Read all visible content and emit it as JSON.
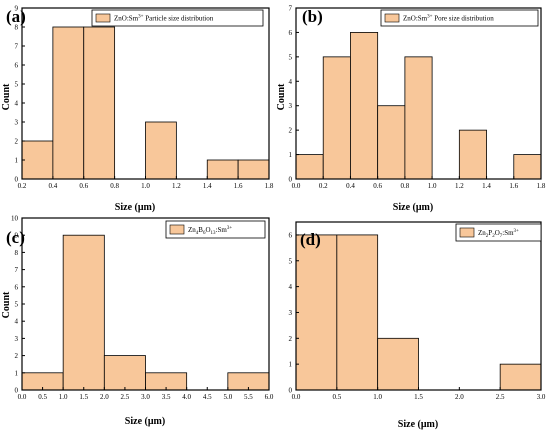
{
  "colors": {
    "bar_fill": "#F8C79A",
    "bar_stroke": "#000000",
    "axis": "#000000"
  },
  "chart_data": [
    {
      "type": "bar",
      "panel_label": "(a)",
      "legend": [
        "ZnO:Sm",
        "3+",
        " Particle size distribution"
      ],
      "xlabel": "Size (μm)",
      "ylabel": "Count",
      "xlim": [
        0.2,
        1.8
      ],
      "ylim": [
        0,
        9
      ],
      "xticks": [
        "0.2",
        "0.4",
        "0.6",
        "0.8",
        "1.0",
        "1.2",
        "1.4",
        "1.6",
        "1.8"
      ],
      "yticks": [
        "0",
        "1",
        "2",
        "3",
        "4",
        "5",
        "6",
        "7",
        "8",
        "9"
      ],
      "bins": [
        {
          "x0": 0.2,
          "x1": 0.4,
          "value": 2
        },
        {
          "x0": 0.4,
          "x1": 0.6,
          "value": 8
        },
        {
          "x0": 0.6,
          "x1": 0.8,
          "value": 8
        },
        {
          "x0": 1.0,
          "x1": 1.2,
          "value": 3
        },
        {
          "x0": 1.4,
          "x1": 1.6,
          "value": 1
        },
        {
          "x0": 1.6,
          "x1": 1.8,
          "value": 1
        }
      ]
    },
    {
      "type": "bar",
      "panel_label": "(b)",
      "legend": [
        "ZnO:Sm",
        "3+",
        " Pore size distribution"
      ],
      "xlabel": "Size (μm)",
      "ylabel": "Count",
      "xlim": [
        0.0,
        1.8
      ],
      "ylim": [
        0,
        7
      ],
      "xticks": [
        "0.0",
        "0.2",
        "0.4",
        "0.6",
        "0.8",
        "1.0",
        "1.2",
        "1.4",
        "1.6",
        "1.8"
      ],
      "yticks": [
        "0",
        "1",
        "2",
        "3",
        "4",
        "5",
        "6",
        "7"
      ],
      "bins": [
        {
          "x0": 0.0,
          "x1": 0.2,
          "value": 1
        },
        {
          "x0": 0.2,
          "x1": 0.4,
          "value": 5
        },
        {
          "x0": 0.4,
          "x1": 0.6,
          "value": 6
        },
        {
          "x0": 0.6,
          "x1": 0.8,
          "value": 3
        },
        {
          "x0": 0.8,
          "x1": 1.0,
          "value": 5
        },
        {
          "x0": 1.2,
          "x1": 1.4,
          "value": 2
        },
        {
          "x0": 1.6,
          "x1": 1.8,
          "value": 1
        }
      ]
    },
    {
      "type": "bar",
      "panel_label": "(c)",
      "legend": [
        "Zn",
        "4",
        "B",
        "6",
        "O",
        "13",
        ":Sm",
        "3+"
      ],
      "xlabel": "Size (μm)",
      "ylabel": "Count",
      "xlim": [
        0.0,
        6.0
      ],
      "ylim": [
        0,
        10
      ],
      "xticks": [
        "0.0",
        "0.5",
        "1.0",
        "1.5",
        "2.0",
        "2.5",
        "3.0",
        "3.5",
        "4.0",
        "4.5",
        "5.0",
        "5.5",
        "6.0"
      ],
      "yticks": [
        "0",
        "1",
        "2",
        "3",
        "4",
        "5",
        "6",
        "7",
        "8",
        "9",
        "10"
      ],
      "bins": [
        {
          "x0": 0.0,
          "x1": 1.0,
          "value": 1
        },
        {
          "x0": 1.0,
          "x1": 2.0,
          "value": 9
        },
        {
          "x0": 2.0,
          "x1": 3.0,
          "value": 2
        },
        {
          "x0": 3.0,
          "x1": 4.0,
          "value": 1
        },
        {
          "x0": 5.0,
          "x1": 6.0,
          "value": 1
        }
      ]
    },
    {
      "type": "bar",
      "panel_label": "(d)",
      "legend": [
        "Zn",
        "2",
        "P",
        "2",
        "O",
        "7",
        ":Sm",
        "3+"
      ],
      "xlabel": "Size (μm)",
      "ylabel": "",
      "xlim": [
        0.0,
        3.0
      ],
      "ylim": [
        0,
        6.5
      ],
      "xticks": [
        "0.0",
        "0.5",
        "1.0",
        "1.5",
        "2.0",
        "2.5",
        "3.0"
      ],
      "yticks": [
        "0",
        "1",
        "2",
        "3",
        "4",
        "5",
        "6"
      ],
      "bins": [
        {
          "x0": 0.0,
          "x1": 0.5,
          "value": 6
        },
        {
          "x0": 0.5,
          "x1": 1.0,
          "value": 6
        },
        {
          "x0": 1.0,
          "x1": 1.5,
          "value": 2
        },
        {
          "x0": 2.5,
          "x1": 3.0,
          "value": 1
        }
      ]
    }
  ]
}
